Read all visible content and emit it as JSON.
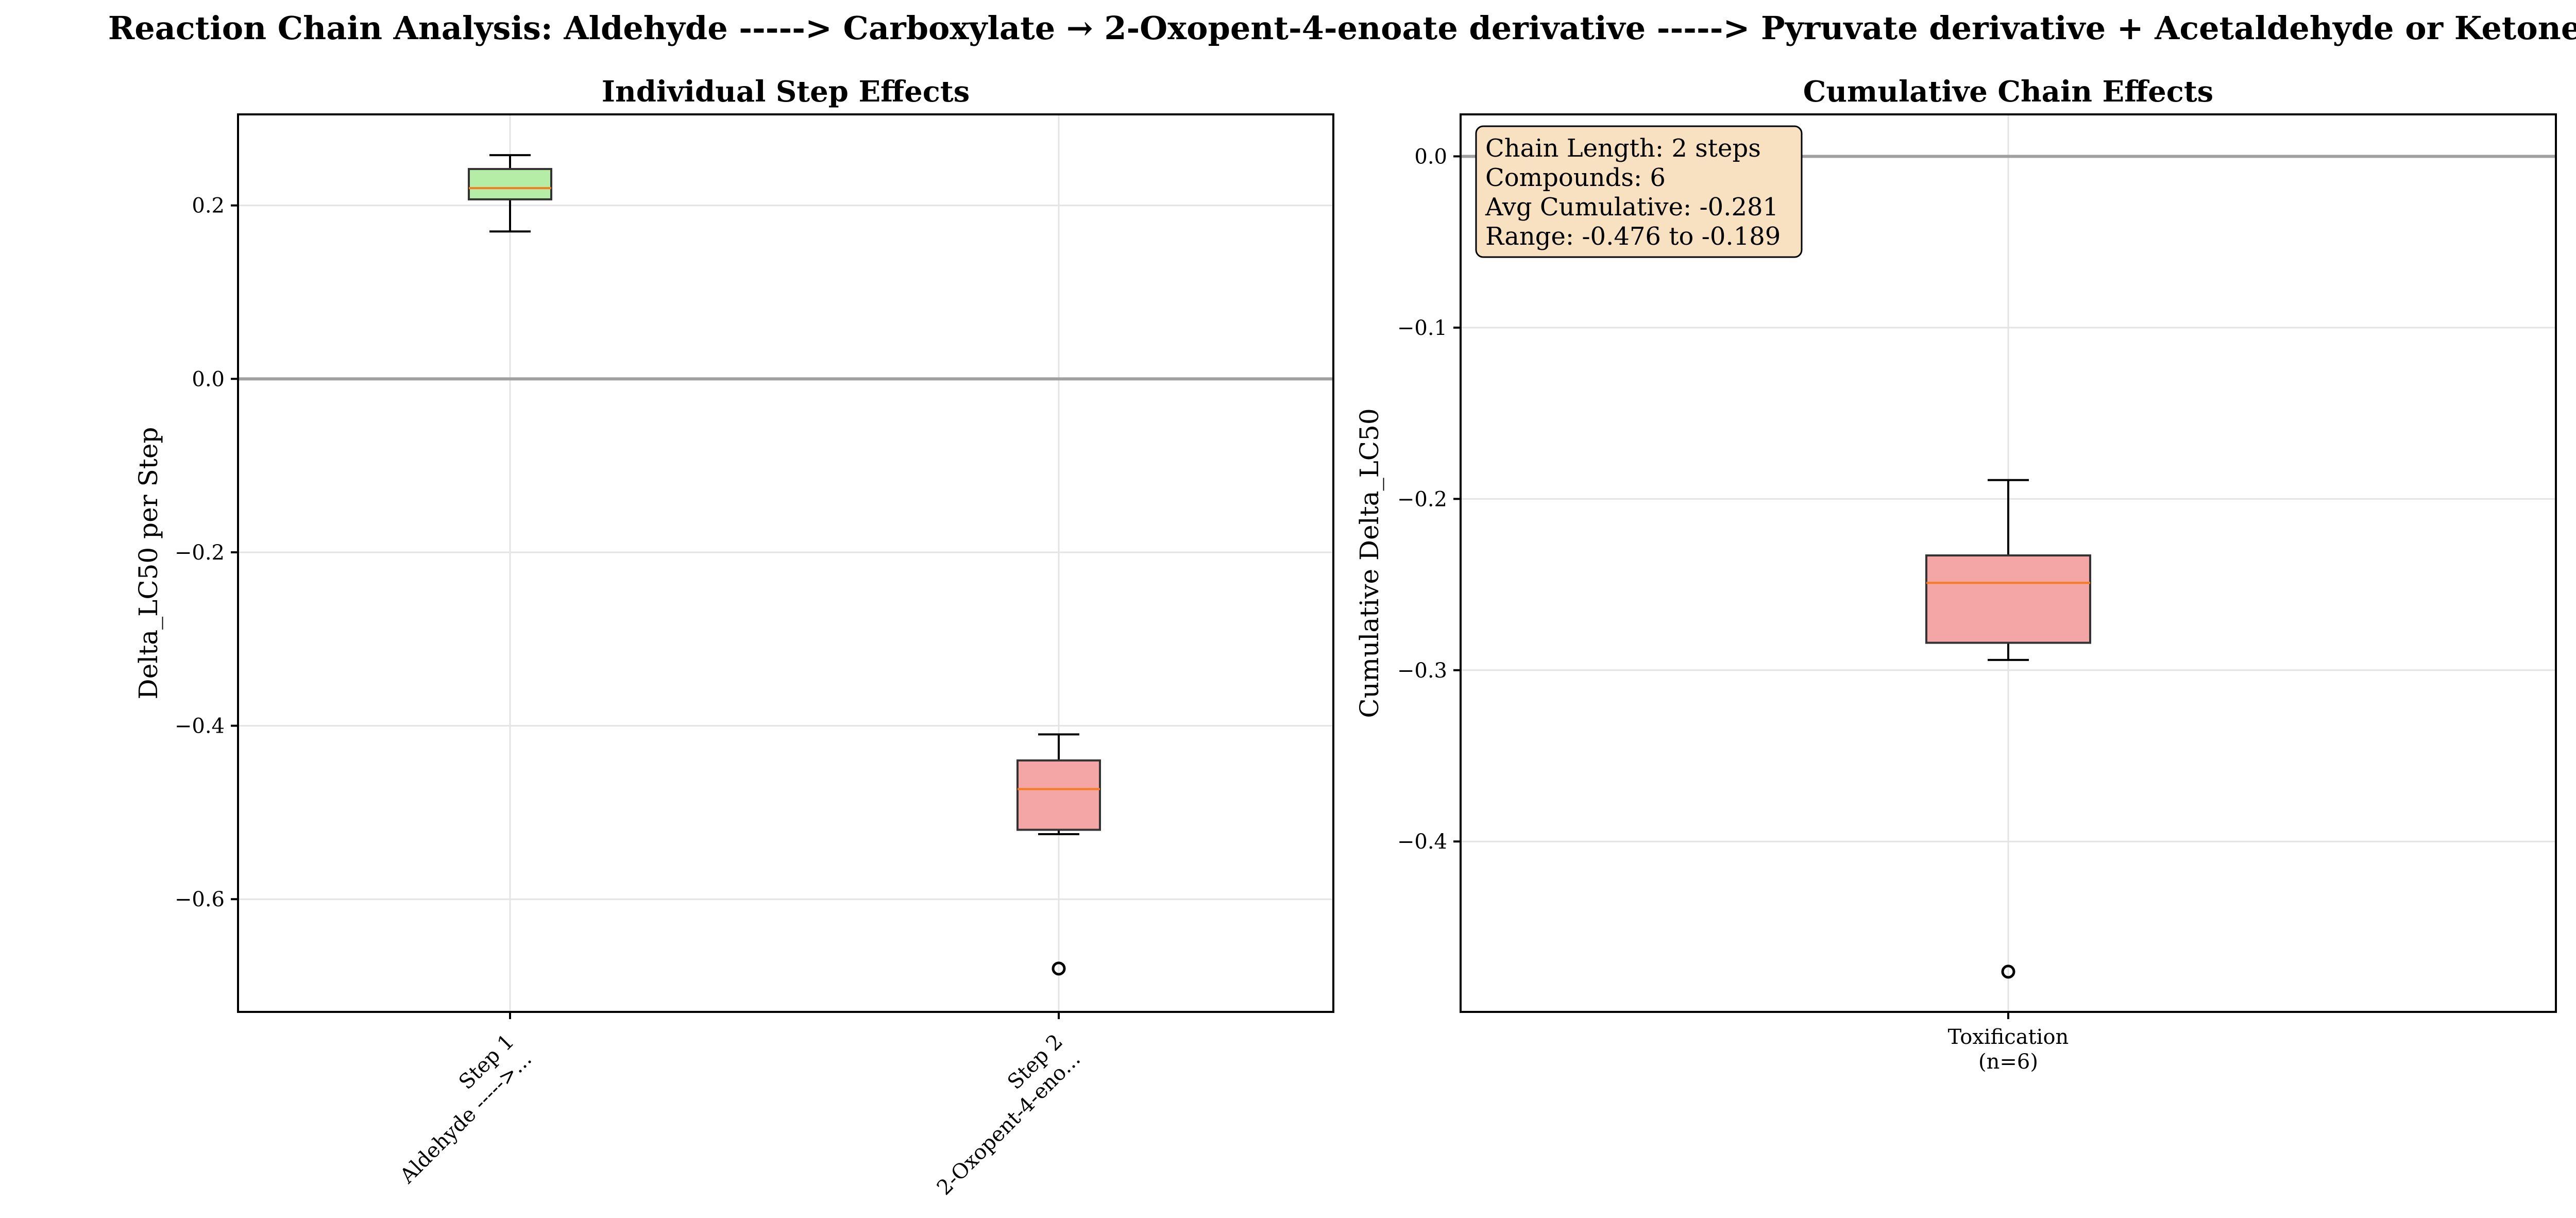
{
  "suptitle": "Reaction Chain Analysis: Aldehyde -----> Carboxylate → 2-Oxopent-4-enoate derivative -----> Pyruvate derivative + Acetaldehyde or Ketone",
  "colors": {
    "toxic_box": "#f4a6a6",
    "protective_box": "#b6eda6",
    "median": "#f47b20",
    "zero_line": "#a0a0a0",
    "grid": "#e4e4e4",
    "annotation_bg": "#f7e1c0"
  },
  "chart_data": [
    {
      "type": "box",
      "title": "Individual Step Effects",
      "xlabel": "",
      "ylabel": "Delta_LC50 per Step",
      "ylim": [
        -0.73,
        0.305
      ],
      "yticks": [
        0.2,
        0.0,
        -0.2,
        -0.4,
        -0.6
      ],
      "ytick_labels": [
        "0.2",
        "0.0",
        "−0.2",
        "−0.4",
        "−0.6"
      ],
      "zero_line": 0,
      "grid": true,
      "categories": [
        {
          "line1": "Step 1",
          "line2": "Aldehyde ----->..."
        },
        {
          "line1": "Step 2",
          "line2": "2-Oxopent-4-eno..."
        }
      ],
      "boxes": [
        {
          "whisker_low": 0.17,
          "q1": 0.207,
          "median": 0.22,
          "q3": 0.242,
          "whisker_high": 0.258,
          "outliers": [],
          "fill": "protective"
        },
        {
          "whisker_low": -0.525,
          "q1": -0.52,
          "median": -0.473,
          "q3": -0.44,
          "whisker_high": -0.41,
          "outliers": [
            -0.68
          ],
          "fill": "toxic"
        }
      ]
    },
    {
      "type": "box",
      "title": "Cumulative Chain Effects",
      "xlabel": "",
      "ylabel": "Cumulative Delta_LC50",
      "ylim": [
        -0.4995,
        0.0245
      ],
      "yticks": [
        0.0,
        -0.1,
        -0.2,
        -0.3,
        -0.4
      ],
      "ytick_labels": [
        "0.0",
        "−0.1",
        "−0.2",
        "−0.3",
        "−0.4"
      ],
      "zero_line": 0,
      "grid": true,
      "categories": [
        {
          "line1": "Toxification",
          "line2": "(n=6)"
        }
      ],
      "boxes": [
        {
          "whisker_low": -0.294,
          "q1": -0.284,
          "median": -0.249,
          "q3": -0.233,
          "whisker_high": -0.189,
          "outliers": [
            -0.476
          ],
          "fill": "toxic"
        }
      ],
      "annotation": [
        "Chain Length: 2 steps",
        "Compounds: 6",
        "Avg Cumulative: -0.281",
        "Range: -0.476 to -0.189"
      ]
    }
  ]
}
